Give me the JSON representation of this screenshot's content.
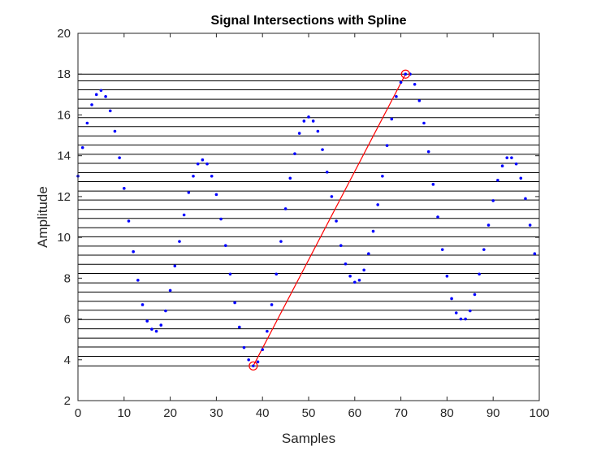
{
  "chart_data": {
    "type": "scatter",
    "title": "Signal Intersections with Spline",
    "xlabel": "Samples",
    "ylabel": "Amplitude",
    "xlim": [
      0,
      100
    ],
    "ylim": [
      2,
      20
    ],
    "xticks": [
      0,
      10,
      20,
      30,
      40,
      50,
      60,
      70,
      80,
      90,
      100
    ],
    "yticks": [
      2,
      4,
      6,
      8,
      10,
      12,
      14,
      16,
      18,
      20
    ],
    "grid": false,
    "colors": {
      "points": "#0000ff",
      "spline": "#ff0000",
      "hlines": "#000000",
      "axes": "#262626"
    },
    "series": [
      {
        "type": "scatter",
        "x": [
          0,
          1,
          2,
          3,
          4,
          5,
          6,
          7,
          8,
          9,
          10,
          11,
          12,
          13,
          14,
          15,
          16,
          17,
          18,
          19,
          20,
          21,
          22,
          23,
          24,
          25,
          26,
          27,
          28,
          29,
          30,
          31,
          32,
          33,
          34,
          35,
          36,
          37,
          38,
          39,
          40,
          41,
          42,
          43,
          44,
          45,
          46,
          47,
          48,
          49,
          50,
          51,
          52,
          53,
          54,
          55,
          56,
          57,
          58,
          59,
          60,
          61,
          62,
          63,
          64,
          65,
          66,
          67,
          68,
          69,
          70,
          71,
          72,
          73,
          74,
          75,
          76,
          77,
          78,
          79,
          80,
          81,
          82,
          83,
          84,
          85,
          86,
          87,
          88,
          89,
          90,
          91,
          92,
          93,
          94,
          95,
          96,
          97,
          98,
          99
        ],
        "y": [
          13.0,
          14.4,
          15.6,
          16.5,
          17.0,
          17.2,
          16.9,
          16.2,
          15.2,
          13.9,
          12.4,
          10.8,
          9.3,
          7.9,
          6.7,
          5.9,
          5.5,
          5.4,
          5.7,
          6.4,
          7.4,
          8.6,
          9.8,
          11.1,
          12.2,
          13.0,
          13.6,
          13.8,
          13.6,
          13.0,
          12.1,
          10.9,
          9.6,
          8.2,
          6.8,
          5.6,
          4.6,
          4.0,
          3.7,
          3.9,
          4.5,
          5.4,
          6.7,
          8.2,
          9.8,
          11.4,
          12.9,
          14.1,
          15.1,
          15.7,
          15.9,
          15.7,
          15.2,
          14.3,
          13.2,
          12.0,
          10.8,
          9.6,
          8.7,
          8.1,
          7.8,
          7.9,
          8.4,
          9.2,
          10.3,
          11.6,
          13.0,
          14.5,
          15.8,
          16.9,
          17.6,
          18.0,
          18.0,
          17.5,
          16.7,
          15.6,
          14.2,
          12.6,
          11.0,
          9.4,
          8.1,
          7.0,
          6.3,
          6.0,
          6.0,
          6.4,
          7.2,
          8.2,
          9.4,
          10.6,
          11.8,
          12.8,
          13.5,
          13.9,
          13.9,
          13.6,
          12.9,
          11.9,
          10.6,
          9.2
        ]
      },
      {
        "type": "line",
        "x": [
          38,
          71
        ],
        "y": [
          3.7,
          18.0
        ]
      }
    ],
    "markers": [
      {
        "shape": "circle",
        "x": 38,
        "y": 3.7
      },
      {
        "shape": "circle",
        "x": 71,
        "y": 18.0
      }
    ],
    "hlines": [
      3.7,
      4.17,
      4.63,
      5.06,
      5.52,
      5.97,
      6.43,
      6.87,
      7.32,
      7.77,
      8.23,
      8.68,
      9.13,
      9.57,
      10.03,
      10.47,
      10.93,
      11.37,
      11.83,
      12.27,
      12.73,
      13.17,
      13.63,
      14.07,
      14.53,
      14.97,
      15.43,
      15.87,
      16.33,
      16.77,
      17.23,
      17.67,
      18.0
    ]
  }
}
